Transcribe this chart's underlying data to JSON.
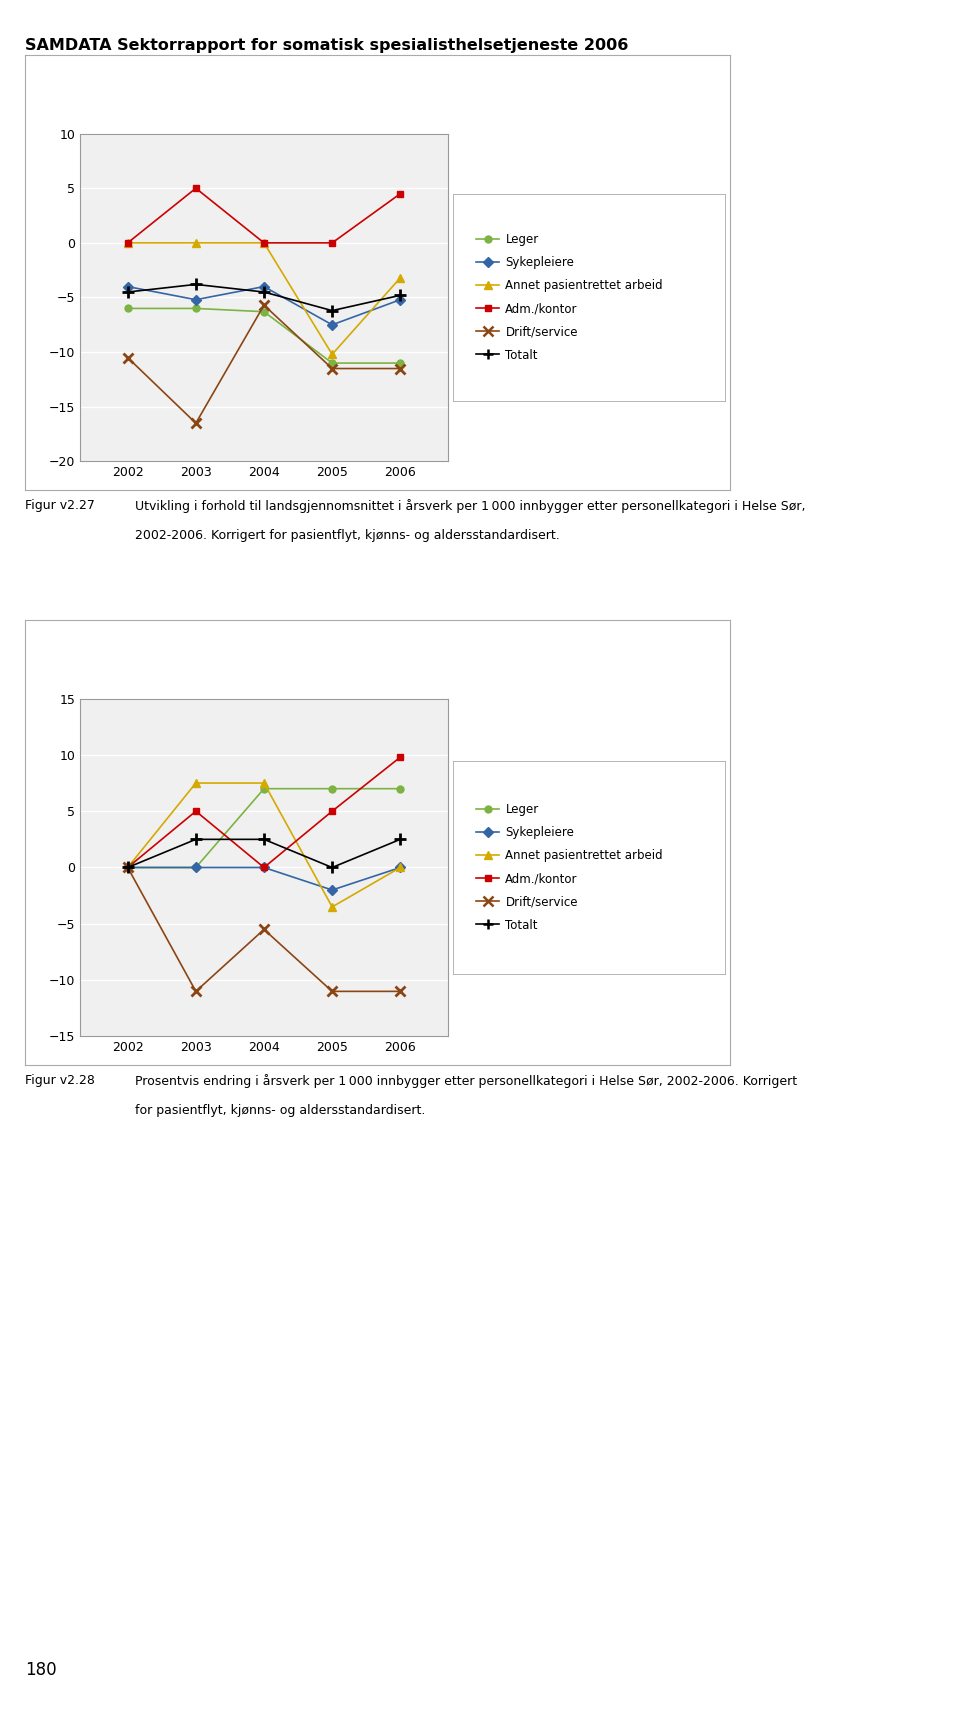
{
  "header_text": "SAMDATA Sektorrapport for somatisk spesialisthelsetjeneste 2006",
  "years": [
    2002,
    2003,
    2004,
    2005,
    2006
  ],
  "chart1": {
    "leger": [
      -6.0,
      -6.0,
      -6.3,
      -11.0,
      -11.0
    ],
    "sykepleiere": [
      -4.0,
      -5.2,
      -4.0,
      -7.5,
      -5.2
    ],
    "annet": [
      0.0,
      0.0,
      0.0,
      -10.2,
      -3.2
    ],
    "adm_kontor": [
      0.0,
      5.0,
      0.0,
      0.0,
      4.5
    ],
    "drift_service": [
      -10.5,
      -16.5,
      -5.7,
      -11.5,
      -11.5
    ],
    "totalt": [
      -4.5,
      -3.8,
      -4.5,
      -6.2,
      -4.8
    ],
    "ylim": [
      -20,
      10
    ],
    "yticks": [
      -20,
      -15,
      -10,
      -5,
      0,
      5,
      10
    ]
  },
  "chart2": {
    "leger": [
      0.0,
      0.0,
      7.0,
      7.0,
      7.0
    ],
    "sykepleiere": [
      0.0,
      0.0,
      0.0,
      -2.0,
      0.0
    ],
    "annet": [
      0.0,
      7.5,
      7.5,
      -3.5,
      0.0
    ],
    "adm_kontor": [
      0.0,
      5.0,
      0.0,
      5.0,
      9.8
    ],
    "drift_service": [
      0.0,
      -11.0,
      -5.5,
      -11.0,
      -11.0
    ],
    "totalt": [
      0.0,
      2.5,
      2.5,
      0.0,
      2.5
    ],
    "ylim": [
      -15,
      15
    ],
    "yticks": [
      -15,
      -10,
      -5,
      0,
      5,
      10,
      15
    ]
  },
  "colors": {
    "leger": "#7CB342",
    "sykepleiere": "#3465A4",
    "annet": "#D4AA00",
    "adm_kontor": "#CC0000",
    "drift_service": "#8B4513",
    "totalt": "#000000"
  },
  "page_number": "180"
}
